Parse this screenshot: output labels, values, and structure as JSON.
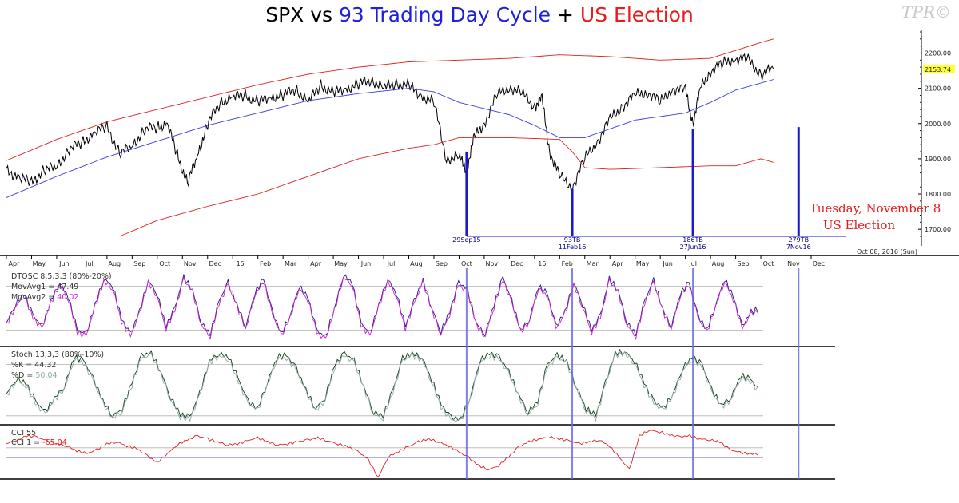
{
  "title": {
    "part1": "SPX vs ",
    "part2": "93 Trading Day Cycle",
    "part3": " + ",
    "part4": "US Election",
    "color_black": "#000000",
    "color_blue": "#1f1fd6",
    "color_red": "#e81c1c"
  },
  "logo": "TPR©",
  "date_stamp": "Oct 08, 2016 (Sun)",
  "election_note": {
    "line1": "Tuesday, November 8",
    "line2": "US Election"
  },
  "colors": {
    "price": "#000000",
    "ma_blue": "#3a3ae6",
    "band_red": "#e02020",
    "cycle_line": "#1a1acc",
    "dtosc_1": "#1a1a80",
    "dtosc_2": "#d21fd2",
    "stoch_k": "#0d3d0d",
    "stoch_d": "#8fa8a8",
    "cci": "#e02020",
    "last_price_bg": "#ffff33",
    "grid": "#b0b0b0"
  },
  "chart_data": {
    "type": "line",
    "title": "SPX vs 93 Trading Day Cycle + US Election",
    "xlabel": "",
    "ylabel": "",
    "ylim": [
      1680,
      2260
    ],
    "y_ticks": [
      "2200.00",
      "2100.00",
      "2000.00",
      "1900.00",
      "1800.00",
      "1700.00"
    ],
    "last_price": "2153.74",
    "x_tick_labels": [
      "Apr",
      "May",
      "Jun",
      "Jul",
      "Aug",
      "Sep",
      "Oct",
      "Nov",
      "Dec",
      "15",
      "Feb",
      "Mar",
      "Apr",
      "May",
      "Jun",
      "Jul",
      "Aug",
      "Sep",
      "Oct",
      "Nov",
      "Dec",
      "16",
      "Feb",
      "Mar",
      "Apr",
      "May",
      "Jun",
      "Jul",
      "Aug",
      "Sep",
      "Oct",
      "Nov",
      "Dec"
    ],
    "x_range": [
      0,
      32
    ],
    "series": [
      {
        "name": "SPX",
        "x": [
          0,
          0.5,
          1,
          1.5,
          2,
          2.5,
          3,
          3.5,
          4,
          4.5,
          5,
          5.5,
          6,
          6.4,
          6.8,
          7.2,
          7.6,
          8,
          8.5,
          9,
          9.5,
          10,
          10.5,
          11,
          11.5,
          12,
          12.5,
          13,
          13.5,
          14,
          14.5,
          15,
          15.5,
          16,
          16.5,
          17,
          17.5,
          18,
          18.3,
          18.6,
          19,
          19.5,
          20,
          20.5,
          21,
          21.3,
          21.6,
          22,
          22.5,
          23,
          23.5,
          24,
          24.5,
          25,
          25.5,
          26,
          26.5,
          27,
          27.3,
          27.6,
          28,
          28.5,
          29,
          29.5,
          30,
          30.5
        ],
        "values": [
          1865,
          1850,
          1830,
          1870,
          1875,
          1930,
          1945,
          1975,
          1990,
          1915,
          1935,
          1985,
          1990,
          2000,
          1910,
          1830,
          1910,
          2000,
          2060,
          2075,
          2080,
          2060,
          2075,
          2080,
          2100,
          2060,
          2110,
          2085,
          2100,
          2110,
          2125,
          2100,
          2115,
          2105,
          2080,
          2060,
          1900,
          1905,
          1870,
          1960,
          2000,
          2080,
          2105,
          2085,
          2050,
          2070,
          1920,
          1850,
          1820,
          1900,
          1950,
          2010,
          2050,
          2080,
          2090,
          2060,
          2100,
          2095,
          2000,
          2100,
          2150,
          2170,
          2185,
          2180,
          2140,
          2155
        ]
      },
      {
        "name": "Moving Average",
        "x": [
          0,
          2,
          4,
          6,
          8,
          10,
          12,
          14,
          16,
          17,
          18,
          20,
          21,
          22,
          23,
          24,
          25,
          26,
          27,
          28,
          29,
          30,
          30.5
        ],
        "values": [
          1790,
          1850,
          1905,
          1950,
          1995,
          2030,
          2065,
          2085,
          2100,
          2090,
          2060,
          2025,
          1995,
          1960,
          1960,
          1985,
          2010,
          2020,
          2030,
          2060,
          2095,
          2115,
          2125
        ]
      },
      {
        "name": "Upper Band",
        "x": [
          0,
          2,
          4,
          6,
          8,
          10,
          12,
          14,
          16,
          18,
          20,
          22,
          24,
          26,
          28,
          30,
          30.5
        ],
        "values": [
          1895,
          1955,
          2005,
          2040,
          2075,
          2110,
          2140,
          2160,
          2175,
          2180,
          2185,
          2195,
          2190,
          2180,
          2185,
          2230,
          2240
        ]
      },
      {
        "name": "Lower Band",
        "x": [
          4.5,
          6,
          8,
          10,
          12,
          14,
          16,
          17,
          18,
          20,
          22,
          22.5,
          23,
          24,
          26,
          28,
          29,
          30,
          30.5
        ],
        "values": [
          1680,
          1725,
          1765,
          1800,
          1850,
          1900,
          1930,
          1940,
          1960,
          1960,
          1955,
          1920,
          1875,
          1870,
          1875,
          1880,
          1880,
          1900,
          1890
        ]
      }
    ],
    "cycle_lines": [
      {
        "x": 18.3,
        "top_value": 1920,
        "label1": "29Sep15",
        "label2": ""
      },
      {
        "x": 22.5,
        "top_value": 1815,
        "label1": "93TB",
        "label2": "11Feb16"
      },
      {
        "x": 27.3,
        "top_value": 1985,
        "label1": "186TB",
        "label2": "27Jun16"
      },
      {
        "x": 31.5,
        "top_value": 1990,
        "label1": "279TB",
        "label2": "7Nov16"
      }
    ],
    "panels": [
      {
        "name": "DTOSC",
        "label": "DTOSC 8,5,3,3 (80%-20%)",
        "legend1": "MovAvg1 = 47.49",
        "legend2_prefix": "MovAvg2 = ",
        "legend2_value": "40.02",
        "levels": [
          80,
          20
        ],
        "values": [
          30,
          55,
          70,
          40,
          25,
          60,
          85,
          65,
          20,
          15,
          55,
          90,
          80,
          35,
          15,
          45,
          88,
          70,
          25,
          50,
          92,
          75,
          30,
          15,
          60,
          85,
          55,
          25,
          70,
          90,
          45,
          15,
          40,
          80,
          65,
          20,
          10,
          50,
          95,
          85,
          30,
          15,
          55,
          90,
          70,
          25,
          60,
          88,
          50,
          18,
          45,
          85,
          75,
          30,
          15,
          55,
          92,
          60,
          20,
          35,
          80,
          70,
          25,
          45,
          85,
          55,
          20,
          40,
          90,
          75,
          30,
          15,
          60,
          88,
          50,
          25,
          70,
          85,
          40,
          20,
          55,
          90,
          65,
          25,
          45,
          50
        ]
      },
      {
        "name": "Stoch",
        "label": "Stoch 13,3,3 (80%-10%)",
        "legend1": "%K = 44.32",
        "legend2_prefix": "%D = ",
        "legend2_value": "50.04",
        "levels": [
          80,
          10
        ],
        "values": [
          40,
          60,
          55,
          30,
          15,
          35,
          50,
          90,
          85,
          60,
          30,
          10,
          20,
          55,
          92,
          95,
          70,
          35,
          12,
          8,
          40,
          85,
          95,
          90,
          60,
          30,
          20,
          55,
          90,
          92,
          75,
          45,
          20,
          35,
          80,
          95,
          85,
          50,
          15,
          10,
          45,
          88,
          95,
          90,
          60,
          25,
          8,
          5,
          35,
          85,
          95,
          90,
          70,
          40,
          15,
          30,
          80,
          92,
          85,
          50,
          20,
          10,
          55,
          95,
          98,
          85,
          55,
          30,
          20,
          40,
          75,
          90,
          80,
          45,
          25,
          35,
          65,
          60,
          44
        ]
      },
      {
        "name": "CCI",
        "label": "CCI 55",
        "legend1_prefix": "CCI 1 = ",
        "legend1_value": "-65.04",
        "levels": [
          100,
          0,
          -100
        ],
        "values": [
          40,
          80,
          120,
          110,
          70,
          40,
          20,
          -30,
          -60,
          -20,
          40,
          60,
          20,
          -10,
          -80,
          -150,
          -60,
          30,
          80,
          120,
          90,
          60,
          30,
          40,
          70,
          100,
          60,
          30,
          40,
          60,
          80,
          100,
          70,
          40,
          10,
          -40,
          -120,
          -300,
          -90,
          -40,
          10,
          60,
          90,
          60,
          20,
          -40,
          -100,
          -180,
          -220,
          -180,
          -90,
          10,
          60,
          90,
          110,
          90,
          70,
          40,
          60,
          80,
          20,
          -100,
          -220,
          120,
          180,
          160,
          130,
          110,
          120,
          90,
          80,
          60,
          -20,
          -50,
          -60,
          -65
        ]
      }
    ]
  }
}
